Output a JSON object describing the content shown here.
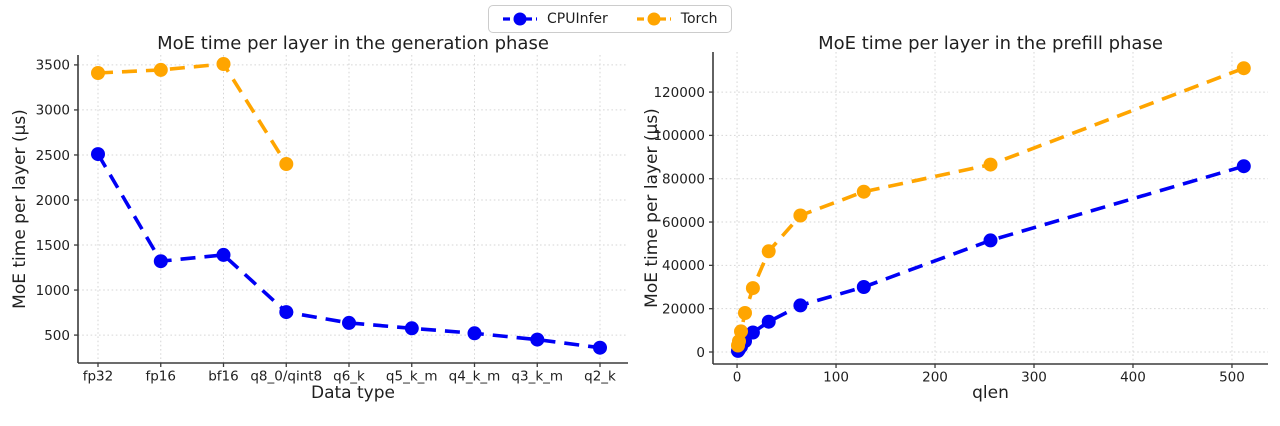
{
  "figure": {
    "background": "#ffffff",
    "text_color": "#1f1f1f",
    "grid_color": "#d6d6d6",
    "spine_color": "#3b3b3b"
  },
  "legend": {
    "items": [
      {
        "label": "CPUInfer",
        "color": "#0000f5"
      },
      {
        "label": "Torch",
        "color": "#ffa500"
      }
    ]
  },
  "chart_data": [
    {
      "type": "line",
      "title": "MoE time per layer in the generation phase",
      "xlabel": "Data type",
      "ylabel": "MoE time per layer (μs)",
      "categories": [
        "fp32",
        "fp16",
        "bf16",
        "q8_0/qint8",
        "q6_k",
        "q5_k_m",
        "q4_k_m",
        "q3_k_m",
        "q2_k"
      ],
      "yticks": [
        500,
        1000,
        1500,
        2000,
        2500,
        3000,
        3500
      ],
      "ylim": [
        190,
        3610
      ],
      "grid": true,
      "line_style": "dashed",
      "legend_position": "upper center of figure",
      "series": [
        {
          "name": "CPUInfer",
          "color": "#0000f5",
          "values": [
            2510,
            1320,
            1390,
            755,
            635,
            575,
            520,
            450,
            360
          ]
        },
        {
          "name": "Torch",
          "color": "#ffa500",
          "values": [
            3410,
            3445,
            3510,
            2400,
            null,
            null,
            null,
            null,
            null
          ]
        }
      ]
    },
    {
      "type": "line",
      "title": "MoE time per layer in the prefill phase",
      "xlabel": "qlen",
      "ylabel": "MoE time per layer (μs)",
      "x": [
        1,
        2,
        4,
        8,
        16,
        32,
        64,
        128,
        256,
        512
      ],
      "xticks": [
        0,
        100,
        200,
        300,
        400,
        500
      ],
      "yticks": [
        0,
        20000,
        40000,
        60000,
        80000,
        100000,
        120000
      ],
      "xlim": [
        -24.3,
        536.4
      ],
      "ylim": [
        -5540,
        138500
      ],
      "grid": true,
      "line_style": "dashed",
      "series": [
        {
          "name": "CPUInfer",
          "color": "#0000f5",
          "values": [
            500,
            1200,
            2500,
            5000,
            9000,
            14000,
            21500,
            30000,
            51500,
            85800
          ]
        },
        {
          "name": "Torch",
          "color": "#ffa500",
          "values": [
            3000,
            5000,
            9500,
            18000,
            29500,
            46500,
            63000,
            74000,
            86500,
            131000
          ]
        }
      ]
    }
  ]
}
